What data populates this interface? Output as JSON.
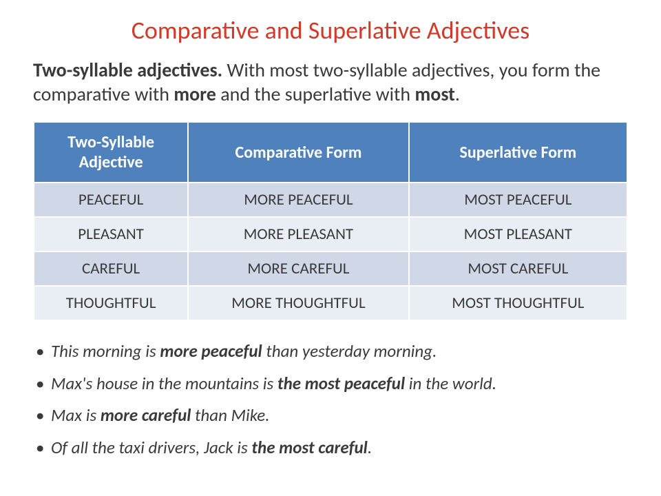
{
  "title": {
    "text": "Comparative and Superlative Adjectives",
    "color": "#d03a2a",
    "fontsize": 36,
    "weight": 400
  },
  "intro": {
    "lead_bold": "Two-syllable adjectives.",
    "rest_before_more": " With most two-syllable adjectives, you form the comparative with ",
    "word_more": "more",
    "rest_mid": " and the superlative with ",
    "word_most": "most",
    "tail": ".",
    "fontsize": 28,
    "color": "#3a3a3a"
  },
  "table": {
    "header_bg": "#4f81bd",
    "header_color": "#ffffff",
    "header_fontsize": 24,
    "header_weight": 700,
    "row_colors": [
      "#d0d8e8",
      "#e9edf4",
      "#d0d8e8",
      "#e9edf4"
    ],
    "cell_fontsize": 23,
    "cell_color": "#3a3a3a",
    "cell_padding_v": 10,
    "header_padding_v": 14,
    "columns": [
      {
        "line1": "Two-Syllable",
        "line2": "Adjective"
      },
      {
        "line1": "Comparative Form"
      },
      {
        "line1": "Superlative Form"
      }
    ],
    "rows": [
      [
        "PEACEFUL",
        "MORE PEACEFUL",
        "MOST PEACEFUL"
      ],
      [
        "PLEASANT",
        "MORE PLEASANT",
        "MOST PLEASANT"
      ],
      [
        "CAREFUL",
        "MORE CAREFUL",
        "MOST CAREFUL"
      ],
      [
        "THOUGHTFUL",
        "MORE THOUGHTFUL",
        "MOST THOUGHTFUL"
      ]
    ]
  },
  "bullets": {
    "fontsize": 25,
    "color": "#3a3a3a",
    "items": [
      {
        "segments": [
          {
            "t": "This morning is ",
            "i": true
          },
          {
            "t": "more peaceful",
            "b": true,
            "i": true
          },
          {
            "t": " than yesterday morning.",
            "i": true
          }
        ]
      },
      {
        "segments": [
          {
            "t": "Max's house in the mountains is ",
            "i": true
          },
          {
            "t": "the most peaceful",
            "b": true,
            "i": true
          },
          {
            "t": " ",
            "i": true
          },
          {
            "t": "in",
            "i": true
          },
          {
            "t": " the world.",
            "i": true
          }
        ]
      },
      {
        "segments": [
          {
            "t": "Max is ",
            "i": true
          },
          {
            "t": "more careful",
            "b": true,
            "i": true
          },
          {
            "t": " than Mike.",
            "i": true
          }
        ]
      },
      {
        "segments": [
          {
            "t": "Of all the taxi drivers, Jack is ",
            "i": true
          },
          {
            "t": "the most careful",
            "b": true,
            "i": true
          },
          {
            "t": ".",
            "i": true
          }
        ]
      }
    ]
  }
}
